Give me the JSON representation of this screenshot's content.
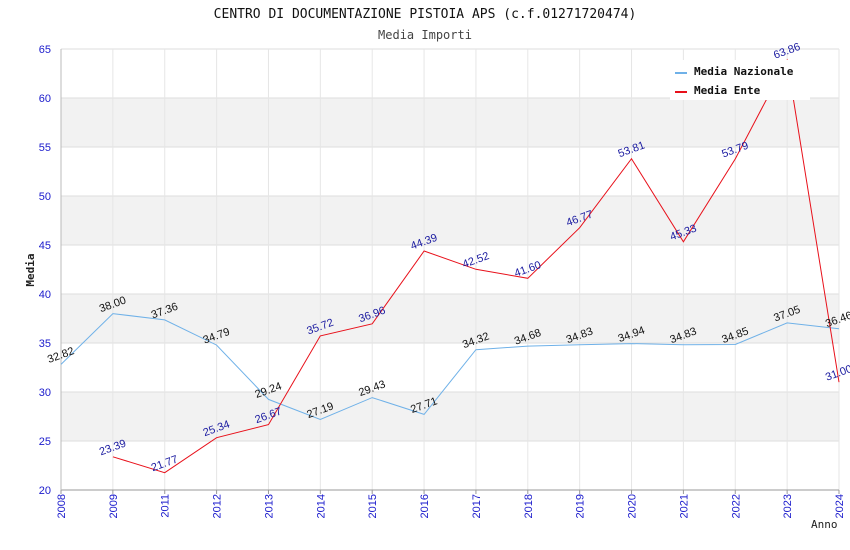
{
  "chart_data": {
    "type": "line",
    "title": "CENTRO DI DOCUMENTAZIONE PISTOIA APS (c.f.01271720474)",
    "subtitle": "Media Importi",
    "ylabel": "Media",
    "xlabel": "Anno",
    "ylim": [
      20,
      65
    ],
    "yticks": [
      20,
      25,
      30,
      35,
      40,
      45,
      50,
      55,
      60,
      65
    ],
    "categories": [
      "2008",
      "2009",
      "2011",
      "2012",
      "2013",
      "2014",
      "2015",
      "2016",
      "2017",
      "2018",
      "2019",
      "2020",
      "2021",
      "2022",
      "2023",
      "2024"
    ],
    "series": [
      {
        "name": "Media Nazionale",
        "color": "#6fb1e8",
        "label_color": "#111111",
        "values": [
          32.82,
          38.0,
          37.36,
          34.79,
          29.24,
          27.19,
          29.43,
          27.71,
          34.32,
          34.68,
          34.83,
          34.94,
          34.83,
          34.85,
          37.05,
          36.46
        ],
        "labels": [
          "32.82",
          "38.00",
          "37.36",
          "34.79",
          "29.24",
          "27.19",
          "29.43",
          "27.71",
          "34.32",
          "34.68",
          "34.83",
          "34.94",
          "34.83",
          "34.85",
          "37.05",
          "36.46"
        ]
      },
      {
        "name": "Media Ente",
        "color": "#e8101a",
        "label_color": "#1a1aa0",
        "values": [
          null,
          23.39,
          21.77,
          25.34,
          26.67,
          35.72,
          36.96,
          44.39,
          42.52,
          41.6,
          46.77,
          53.81,
          45.33,
          53.79,
          63.86,
          31.0
        ],
        "labels": [
          null,
          "23.39",
          "21.77",
          "25.34",
          "26.67",
          "35.72",
          "36.96",
          "44.39",
          "42.52",
          "41.60",
          "46.77",
          "53.81",
          "45.33",
          "53.79",
          "63.86",
          "31.00"
        ]
      }
    ],
    "grid": true,
    "legend": "top-right",
    "axis_tick_color": "#1a1acc"
  }
}
